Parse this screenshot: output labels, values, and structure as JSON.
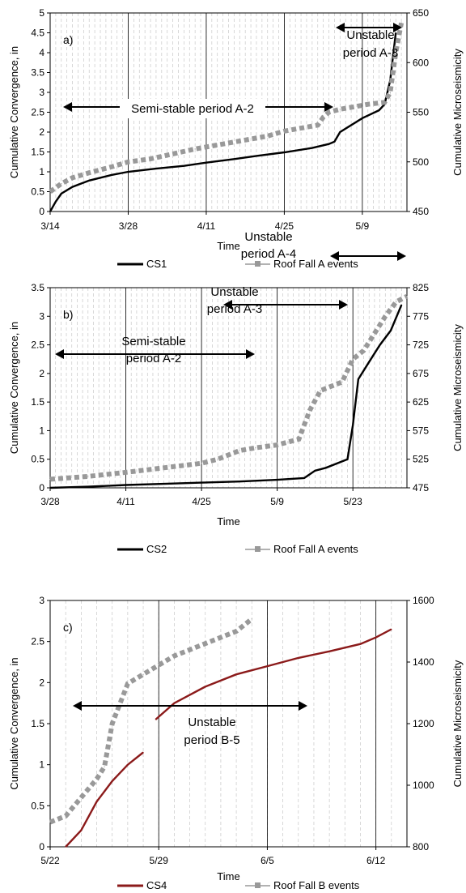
{
  "chart_data": [
    {
      "type": "line",
      "panel_label": "a)",
      "xlabel": "Time",
      "ylabel": "Cumulative Convergence, in",
      "y2label": "Cumulative Microseismicity",
      "x_ticks": [
        "3/14",
        "3/28",
        "4/11",
        "4/25",
        "5/9"
      ],
      "xlim": [
        "3/14",
        "5/16"
      ],
      "ylim": [
        0,
        5
      ],
      "y_ticks": [
        "0",
        "0.5",
        "1",
        "1.5",
        "2",
        "2.5",
        "3",
        "3.5",
        "4",
        "4.5",
        "5"
      ],
      "y2lim": [
        450,
        650
      ],
      "y2_ticks": [
        "450",
        "500",
        "550",
        "600",
        "650"
      ],
      "grid": "vertical",
      "legend_position": "bottom",
      "series": [
        {
          "name": "CS1",
          "axis": "left",
          "color": "#000000",
          "style": "solid",
          "x": [
            "3/14",
            "3/15",
            "3/16",
            "3/18",
            "3/21",
            "3/25",
            "3/28",
            "4/2",
            "4/7",
            "4/11",
            "4/16",
            "4/20",
            "4/25",
            "4/30",
            "5/3",
            "5/4",
            "5/5",
            "5/9",
            "5/12",
            "5/13",
            "5/14",
            "5/15"
          ],
          "y": [
            0,
            0.25,
            0.45,
            0.62,
            0.78,
            0.92,
            1.0,
            1.08,
            1.15,
            1.23,
            1.32,
            1.4,
            1.49,
            1.6,
            1.7,
            1.76,
            2.0,
            2.35,
            2.55,
            2.7,
            3.3,
            4.5
          ]
        },
        {
          "name": "Roof Fall A events",
          "axis": "right",
          "color": "#999999",
          "style": "dashed-square",
          "x": [
            "3/14",
            "3/16",
            "3/18",
            "3/21",
            "3/25",
            "3/28",
            "4/1",
            "4/5",
            "4/9",
            "4/14",
            "4/18",
            "4/22",
            "4/25",
            "4/28",
            "5/1",
            "5/2",
            "5/3",
            "5/5",
            "5/7",
            "5/10",
            "5/13",
            "5/14",
            "5/15",
            "5/16"
          ],
          "y": [
            470,
            478,
            484,
            489,
            495,
            500,
            503,
            508,
            513,
            518,
            522,
            526,
            531,
            534,
            537,
            545,
            550,
            553,
            555,
            558,
            560,
            570,
            610,
            640
          ]
        }
      ],
      "annotations": [
        "Semi-stable period A-2",
        "Unstable period A-3"
      ]
    },
    {
      "type": "line",
      "panel_label": "b)",
      "xlabel": "Time",
      "ylabel": "Cumulative Convergence, in",
      "y2label": "Cumulative Microseismicity",
      "x_ticks": [
        "3/28",
        "4/11",
        "4/25",
        "5/9",
        "5/23"
      ],
      "xlim": [
        "3/28",
        "6/2"
      ],
      "ylim": [
        0,
        3.5
      ],
      "y_ticks": [
        "0",
        "0.5",
        "1",
        "1.5",
        "2",
        "2.5",
        "3",
        "3.5"
      ],
      "y2lim": [
        475,
        825
      ],
      "y2_ticks": [
        "475",
        "525",
        "575",
        "625",
        "675",
        "725",
        "775",
        "825"
      ],
      "grid": "vertical",
      "legend_position": "bottom",
      "series": [
        {
          "name": "CS2",
          "axis": "left",
          "color": "#000000",
          "style": "solid",
          "x": [
            "3/28",
            "4/4",
            "4/11",
            "4/18",
            "4/25",
            "5/2",
            "5/9",
            "5/14",
            "5/16",
            "5/18",
            "5/22",
            "5/23",
            "5/24",
            "5/26",
            "5/28",
            "5/30",
            "6/1"
          ],
          "y": [
            0,
            0.02,
            0.05,
            0.07,
            0.09,
            0.11,
            0.14,
            0.17,
            0.3,
            0.35,
            0.5,
            1.1,
            1.9,
            2.2,
            2.5,
            2.75,
            3.2
          ]
        },
        {
          "name": "Roof Fall A events",
          "axis": "right",
          "color": "#999999",
          "style": "dashed-square",
          "x": [
            "3/28",
            "4/4",
            "4/11",
            "4/18",
            "4/25",
            "4/28",
            "5/2",
            "5/5",
            "5/9",
            "5/11",
            "5/13",
            "5/15",
            "5/17",
            "5/21",
            "5/23",
            "5/25",
            "5/27",
            "5/29",
            "5/31",
            "6/2"
          ],
          "y": [
            490,
            495,
            502,
            510,
            518,
            525,
            540,
            545,
            550,
            555,
            560,
            610,
            645,
            660,
            700,
            715,
            745,
            775,
            800,
            810
          ]
        }
      ],
      "annotations": [
        "Semi-stable period A-2",
        "Unstable period A-3",
        "Unstable period A-4"
      ]
    },
    {
      "type": "line",
      "panel_label": "c)",
      "xlabel": "Time",
      "ylabel": "Cumulative Convergence, in",
      "y2label": "Cumulative Microseismicity",
      "x_ticks": [
        "5/22",
        "5/29",
        "6/5",
        "6/12"
      ],
      "xlim": [
        "5/22",
        "6/13"
      ],
      "ylim": [
        0,
        3
      ],
      "y_ticks": [
        "0",
        "0.5",
        "1",
        "1.5",
        "2",
        "2.5",
        "3"
      ],
      "y2lim": [
        800,
        1600
      ],
      "y2_ticks": [
        "800",
        "1000",
        "1200",
        "1400",
        "1600"
      ],
      "grid": "vertical",
      "legend_position": "bottom",
      "series": [
        {
          "name": "CS4",
          "axis": "left",
          "color": "#8b1a1a",
          "style": "solid",
          "segments": [
            {
              "x": [
                "5/23",
                "5/24",
                "5/25",
                "5/26",
                "5/27",
                "5/28"
              ],
              "y": [
                0,
                0.2,
                0.55,
                0.8,
                1.0,
                1.15
              ]
            },
            {
              "x": [
                "5/28.8",
                "5/30",
                "6/1",
                "6/3",
                "6/5",
                "6/7",
                "6/9",
                "6/11",
                "6/12",
                "6/13"
              ],
              "y": [
                1.55,
                1.75,
                1.95,
                2.1,
                2.2,
                2.3,
                2.38,
                2.47,
                2.55,
                2.65
              ]
            }
          ]
        },
        {
          "name": "Roof Fall B events",
          "axis": "right",
          "color": "#999999",
          "style": "dashed-square",
          "x": [
            "5/22",
            "5/23",
            "5/24",
            "5/25",
            "5/25.5",
            "5/26",
            "5/27",
            "5/28",
            "5/29",
            "5/30",
            "5/31",
            "6/1",
            "6/2",
            "6/3",
            "6/4"
          ],
          "y": [
            880,
            900,
            960,
            1020,
            1060,
            1200,
            1330,
            1360,
            1390,
            1420,
            1440,
            1460,
            1480,
            1500,
            1540
          ]
        }
      ],
      "annotations": [
        "Unstable period B-5"
      ]
    }
  ]
}
